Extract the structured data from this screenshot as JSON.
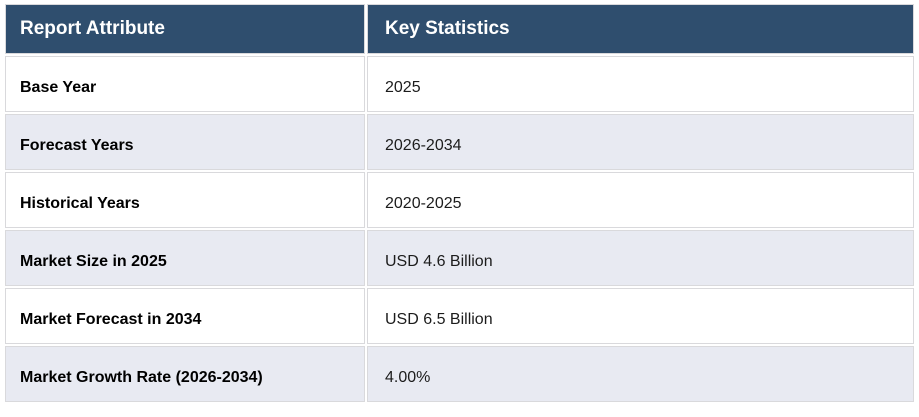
{
  "table": {
    "columns": [
      {
        "label": "Report Attribute"
      },
      {
        "label": "Key Statistics"
      }
    ],
    "rows": [
      {
        "attribute": "Base Year",
        "value": "2025"
      },
      {
        "attribute": "Forecast Years",
        "value": "2026-2034"
      },
      {
        "attribute": "Historical Years",
        "value": "2020-2025"
      },
      {
        "attribute": "Market Size in 2025",
        "value": "USD 4.6 Billion"
      },
      {
        "attribute": "Market Forecast in 2034",
        "value": "USD 6.5 Billion"
      },
      {
        "attribute": "Market Growth Rate (2026-2034)",
        "value": "4.00%"
      }
    ],
    "colors": {
      "header_bg": "#2F4E6E",
      "header_text": "#FFFFFF",
      "row_bg": "#FFFFFF",
      "row_alt_bg": "#E8EAF2",
      "border": "#D9D9DC",
      "attribute_text": "#000000",
      "value_text": "#1C1C1C",
      "page_bg": "#FFFFFF"
    }
  }
}
